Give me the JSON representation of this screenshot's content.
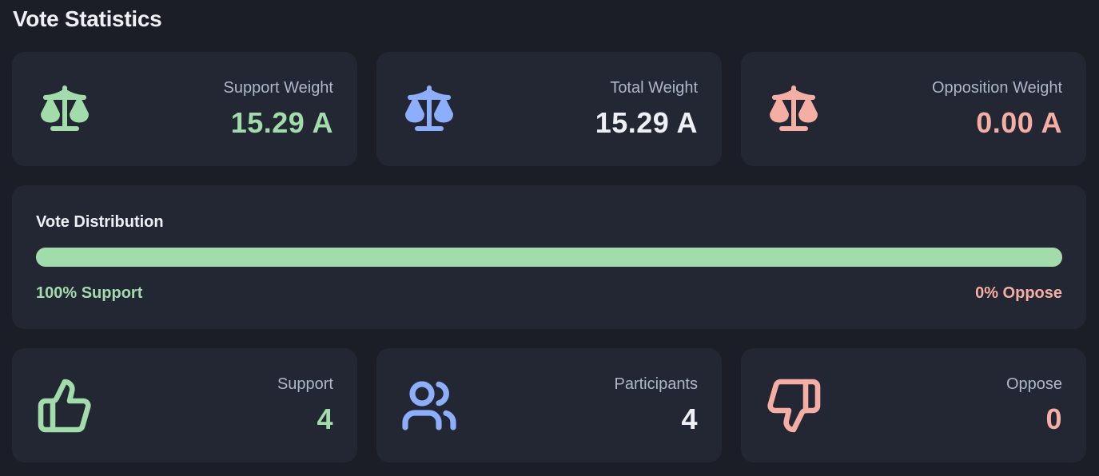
{
  "title": "Vote Statistics",
  "colors": {
    "support": "#a1dcaa",
    "total": "#8caefc",
    "oppose": "#f5aea4",
    "card_bg": "#232733",
    "page_bg": "#1b1e27"
  },
  "weights": [
    {
      "label": "Support Weight",
      "value": "15.29 A",
      "icon": "scale-icon"
    },
    {
      "label": "Total Weight",
      "value": "15.29 A",
      "icon": "scale-icon"
    },
    {
      "label": "Opposition Weight",
      "value": "0.00 A",
      "icon": "scale-icon"
    }
  ],
  "distribution": {
    "title": "Vote Distribution",
    "support_fraction": 1.0,
    "support_label": "100% Support",
    "oppose_label": "0% Oppose"
  },
  "counts": [
    {
      "label": "Support",
      "value": "4",
      "icon": "thumbs-up-icon"
    },
    {
      "label": "Participants",
      "value": "4",
      "icon": "users-icon"
    },
    {
      "label": "Oppose",
      "value": "0",
      "icon": "thumbs-down-icon"
    }
  ]
}
